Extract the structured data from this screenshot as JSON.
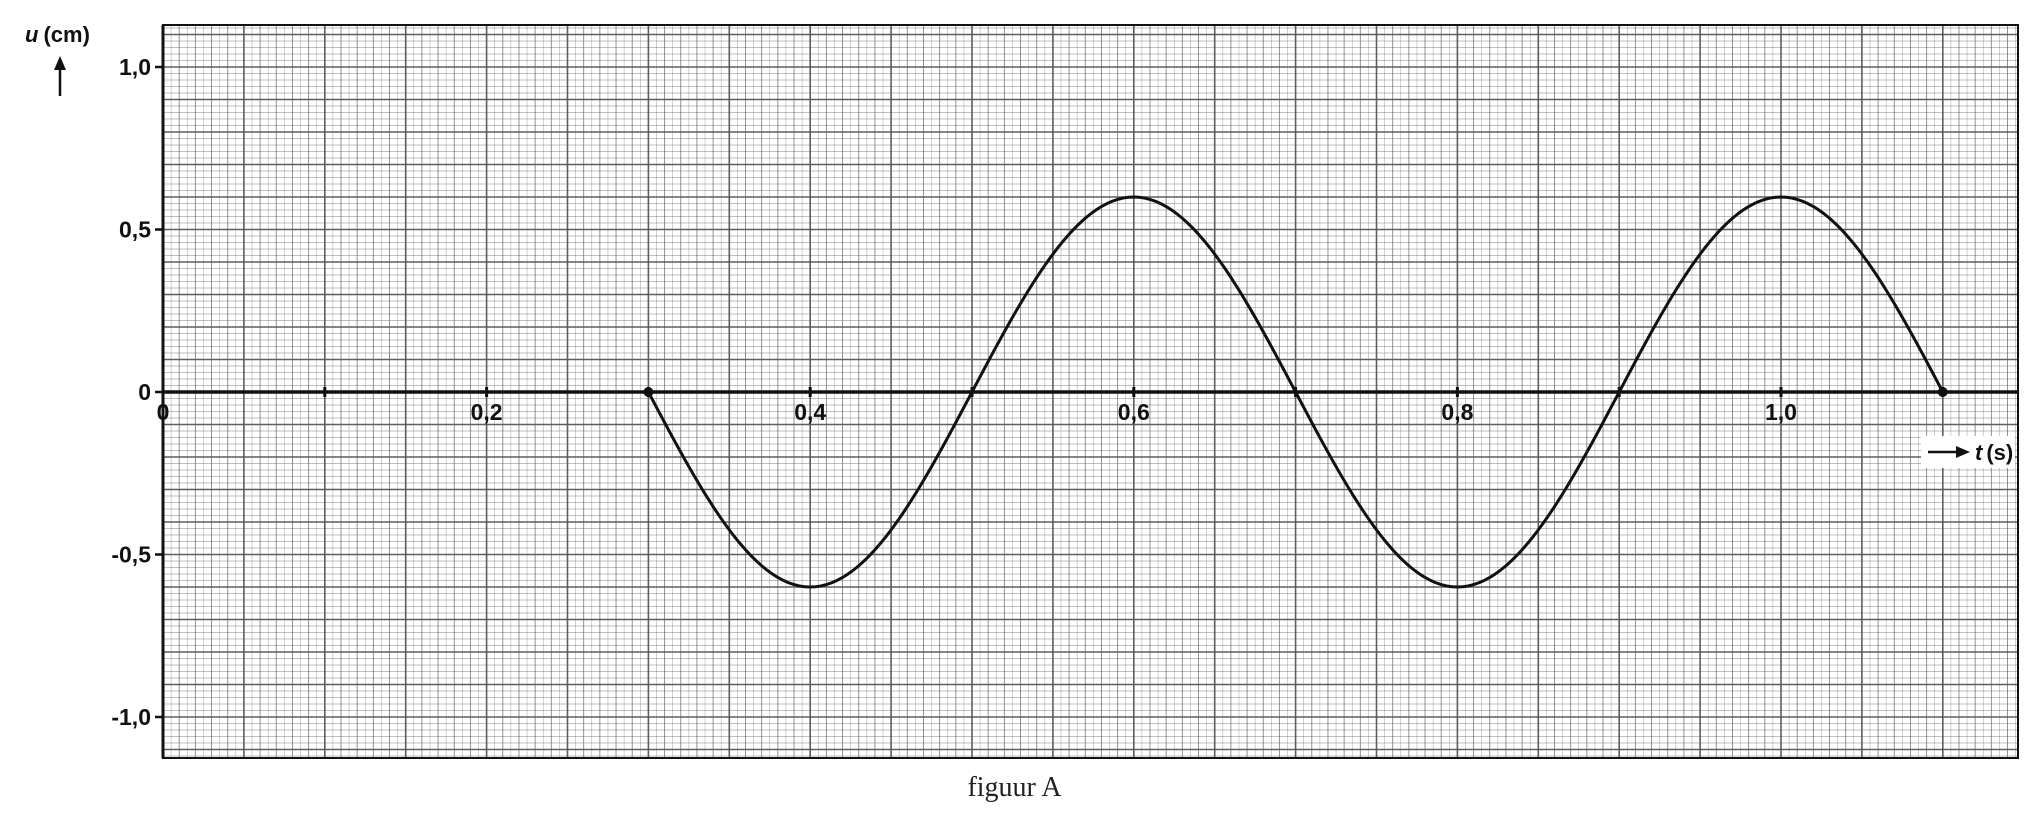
{
  "caption": "figuur A",
  "chart_data": {
    "type": "line",
    "title": "",
    "xlabel": {
      "var": "t",
      "unit": "(s)"
    },
    "ylabel": {
      "var": "u",
      "unit": "(cm)"
    },
    "xlim": [
      0,
      1.15
    ],
    "ylim": [
      -1.12,
      1.12
    ],
    "grid": true,
    "x_ticks": [
      {
        "value": 0,
        "label": "0"
      },
      {
        "value": 0.2,
        "label": "0,2"
      },
      {
        "value": 0.4,
        "label": "0,4"
      },
      {
        "value": 0.6,
        "label": "0,6"
      },
      {
        "value": 0.8,
        "label": "0,8"
      },
      {
        "value": 1.0,
        "label": "1,0"
      }
    ],
    "y_ticks": [
      {
        "value": 1.0,
        "label": "1,0"
      },
      {
        "value": 0.5,
        "label": "0,5"
      },
      {
        "value": 0,
        "label": "0"
      },
      {
        "value": -0.5,
        "label": "-0,5"
      },
      {
        "value": -1.0,
        "label": "-1,0"
      }
    ],
    "series": [
      {
        "x": [
          0,
          0.3,
          0.4,
          0.5,
          0.6,
          0.7,
          0.8,
          0.9,
          1.0,
          1.1
        ],
        "y": [
          0,
          0,
          -0.6,
          0,
          0.6,
          0,
          -0.6,
          0,
          0.6,
          0
        ]
      }
    ],
    "colors": {
      "grid": "#555555",
      "axis": "#111111",
      "line": "#111111"
    }
  }
}
